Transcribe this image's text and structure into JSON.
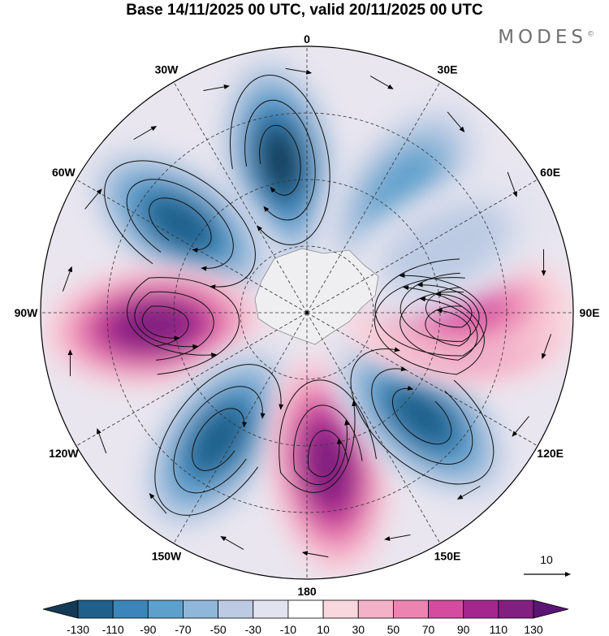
{
  "title": "Base 14/11/2025 00 UTC, valid 20/11/2025 00 UTC",
  "logo": "MODES",
  "logo_mark": "©",
  "meridian_labels": [
    {
      "text": "0",
      "lon": 0
    },
    {
      "text": "30E",
      "lon": 30
    },
    {
      "text": "60E",
      "lon": 60
    },
    {
      "text": "90E",
      "lon": 90
    },
    {
      "text": "120E",
      "lon": 120
    },
    {
      "text": "150E",
      "lon": 150
    },
    {
      "text": "180",
      "lon": 180
    },
    {
      "text": "150W",
      "lon": -150
    },
    {
      "text": "120W",
      "lon": -120
    },
    {
      "text": "90W",
      "lon": -90
    },
    {
      "text": "60W",
      "lon": -60
    },
    {
      "text": "30W",
      "lon": -30
    }
  ],
  "reference_vector_label": "10",
  "colorbar": {
    "ticks": [
      "-130",
      "-110",
      "-90",
      "-70",
      "-50",
      "-30",
      "-10",
      "10",
      "30",
      "50",
      "70",
      "90",
      "110",
      "130"
    ],
    "colors": [
      "#153a55",
      "#1f5f8a",
      "#3b85ba",
      "#5ea0cc",
      "#8fb7d9",
      "#bccbe3",
      "#e3e3ef",
      "#ffffff",
      "#f9d7df",
      "#f4b2c8",
      "#ec84b2",
      "#d54ba0",
      "#a5278e",
      "#812080",
      "#5c1575"
    ]
  },
  "anomaly_centers": [
    {
      "lon": -10,
      "value": -135
    },
    {
      "lon": -55,
      "value": -125
    },
    {
      "lon": -95,
      "value": 125
    },
    {
      "lon": -145,
      "value": -125
    },
    {
      "lon": 172,
      "value": 125
    },
    {
      "lon": 132,
      "value": -125
    },
    {
      "lon": 95,
      "value": 95
    },
    {
      "lon": 88,
      "value": 75
    },
    {
      "lon": 38,
      "value": -80
    },
    {
      "lon": 65,
      "value": -35
    }
  ]
}
